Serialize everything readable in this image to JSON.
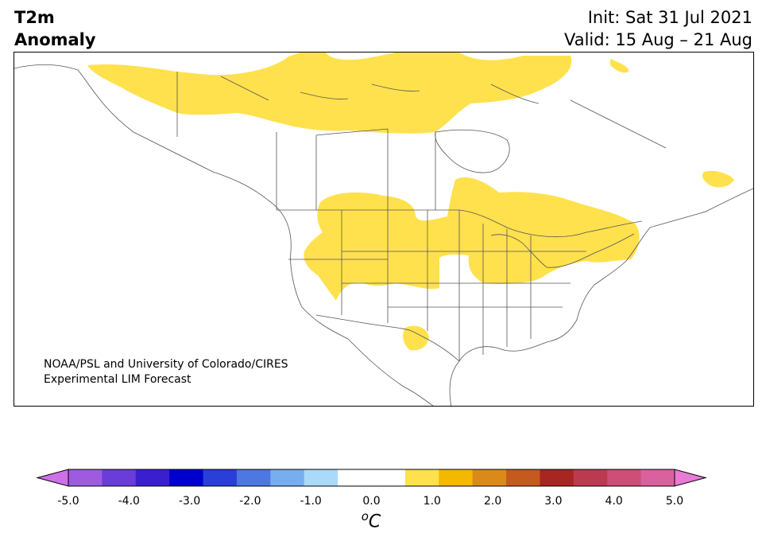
{
  "title": {
    "variable": "T2m",
    "quantity": "Anomaly",
    "init": "Init: Sat 31 Jul 2021",
    "valid": "Valid: 15 Aug – 21 Aug"
  },
  "credit": {
    "line1": "NOAA/PSL and University of Colorado/CIRES",
    "line2": "Experimental LIM Forecast"
  },
  "colorbar": {
    "unit_prefix": "o",
    "unit_main": "C",
    "ticks": [
      "-5.0",
      "-4.0",
      "-3.0",
      "-2.0",
      "-1.0",
      "0.0",
      "1.0",
      "2.0",
      "3.0",
      "4.0",
      "5.0"
    ],
    "colors": [
      "#cf70e8",
      "#9e5be0",
      "#6a3cd8",
      "#3a1fcf",
      "#0000cc",
      "#2a3fd8",
      "#4d78e2",
      "#76aeef",
      "#a9daf9",
      "#ffffff",
      "#ffffff",
      "#ffe14d",
      "#f5b800",
      "#db8a1a",
      "#c45a1d",
      "#a82622",
      "#bc3a4f",
      "#cd4e76",
      "#db619e",
      "#e87bd6"
    ]
  },
  "map": {
    "region": "North America",
    "anomaly_color": "#ffe14d",
    "border_color": "#555555"
  }
}
